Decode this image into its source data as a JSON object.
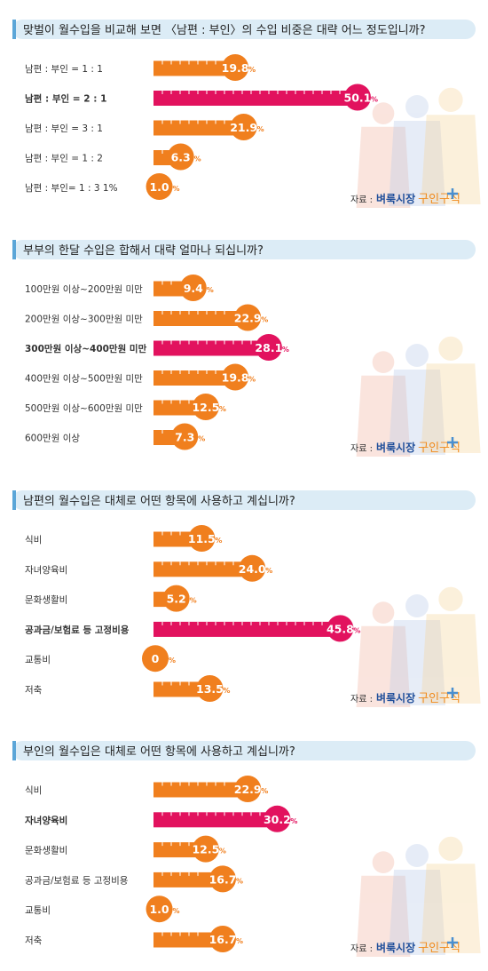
{
  "source": {
    "prefix": "자료 :",
    "brand": "벼룩시장",
    "sub": "구인구직"
  },
  "colors": {
    "orange": "#f07f1e",
    "accent": "#e2125e",
    "header_bg": "#dcecf6",
    "header_bar": "#5ba6d8"
  },
  "chart_data": [
    {
      "type": "bar",
      "title": "맞벌이 월수입을 비교해 보면 〈남편 : 부인〉의 수입 비중은 대략 어느 정도입니까?",
      "categories": [
        "남편 : 부인 = 1 : 1",
        "남편 : 부인 = 2 : 1",
        "남편 : 부인 = 3 : 1",
        "남편 : 부인 = 1 : 2",
        "남편 : 부인= 1 : 3   1%"
      ],
      "values": [
        19.8,
        50.1,
        21.9,
        6.3,
        1.0
      ],
      "labels": [
        "19.8",
        "50.1",
        "21.9",
        "6.3",
        "1.0"
      ],
      "highlight_index": 1
    },
    {
      "type": "bar",
      "title": "부부의 한달 수입은 합해서 대략 얼마나 되십니까?",
      "categories": [
        "100만원 이상~200만원 미만",
        "200만원 이상~300만원 미만",
        "300만원 이상~400만원 미만",
        "400만원 이상~500만원 미만",
        "500만원 이상~600만원 미만",
        "600만원 이상"
      ],
      "values": [
        9.4,
        22.9,
        28.1,
        19.8,
        12.5,
        7.3
      ],
      "labels": [
        "9.4",
        "22.9",
        "28.1",
        "19.8",
        "12.5",
        "7.3"
      ],
      "highlight_index": 2
    },
    {
      "type": "bar",
      "title": "남편의 월수입은 대체로 어떤 항목에 사용하고 계십니까?",
      "categories": [
        "식비",
        "자녀양육비",
        "문화생활비",
        "공과금/보험료 등 고정비용",
        "교통비",
        "저축"
      ],
      "values": [
        11.5,
        24.0,
        5.2,
        45.8,
        0,
        13.5
      ],
      "labels": [
        "11.5",
        "24.0",
        "5.2",
        "45.8",
        "0",
        "13.5"
      ],
      "highlight_index": 3
    },
    {
      "type": "bar",
      "title": "부인의 월수입은 대체로 어떤 항목에 사용하고 계십니까?",
      "categories": [
        "식비",
        "자녀양육비",
        "문화생활비",
        "공과금/보험료 등 고정비용",
        "교통비",
        "저축"
      ],
      "values": [
        22.9,
        30.2,
        12.5,
        16.7,
        1.0,
        16.7
      ],
      "labels": [
        "22.9",
        "30.2",
        "12.5",
        "16.7",
        "1.0",
        "16.7"
      ],
      "highlight_index": 1
    }
  ],
  "unit": "%"
}
